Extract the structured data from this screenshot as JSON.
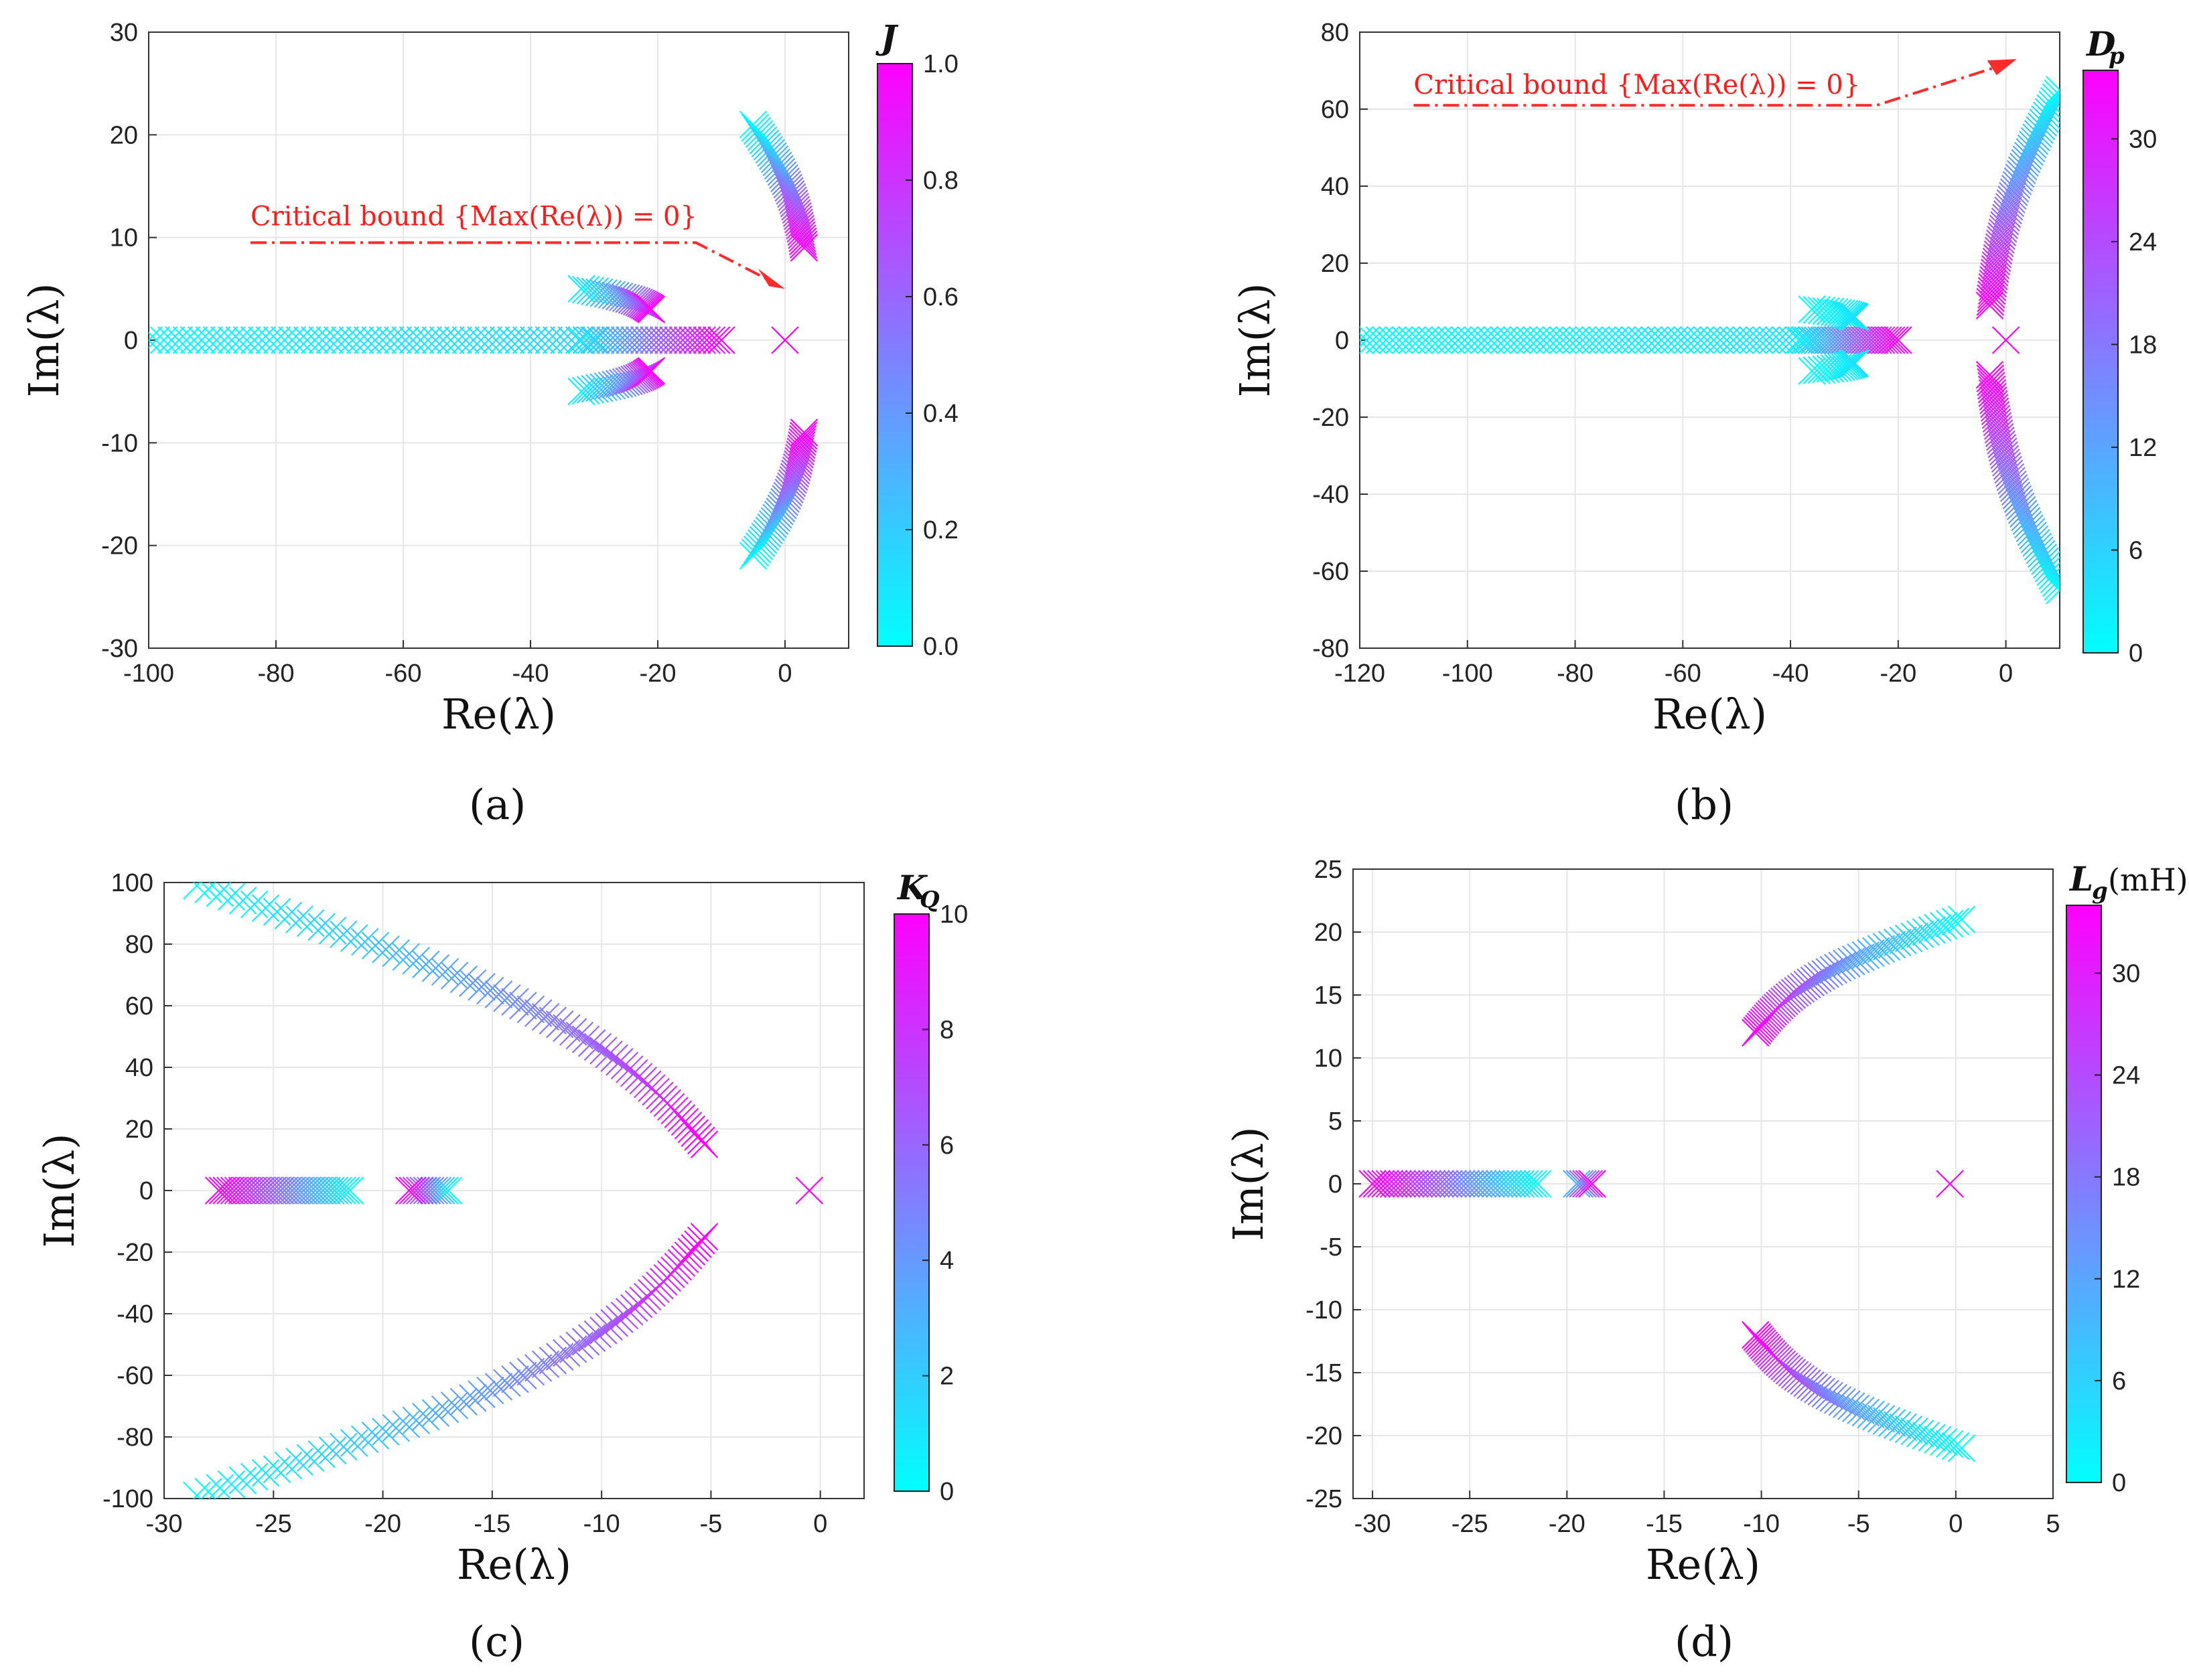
{
  "figure": {
    "subfigure_labels": [
      "(a)",
      "(b)",
      "(c)",
      "(d)"
    ]
  },
  "colors": {
    "cyan": "#00ffff",
    "magenta": "#ff00ff",
    "annotation": "#ff2a2a",
    "grid": "#e6e6e6",
    "axis": "#333333"
  },
  "chart_data": [
    {
      "type": "scatter",
      "id": "a",
      "xlabel": "Re(λ)",
      "ylabel": "Im(λ)",
      "xlim": [
        -100,
        10
      ],
      "ylim": [
        -30,
        30
      ],
      "xticks": [
        -100,
        -80,
        -60,
        -40,
        -20,
        0
      ],
      "yticks": [
        -30,
        -20,
        -10,
        0,
        10,
        20,
        30
      ],
      "colorbar": {
        "label": "J",
        "sub": "",
        "unit": "",
        "range": [
          0,
          1
        ],
        "ticks": [
          "0.0",
          "0.2",
          "0.4",
          "0.6",
          "0.8",
          "1.0"
        ]
      },
      "annotation": {
        "text": "Critical bound {Max(Re(λ)) = 0}"
      },
      "branches": [
        {
          "name": "real-axis high-frequency",
          "x_start": -100,
          "x_end": -30,
          "y_start": 0,
          "y_end": 0,
          "c_start": 0,
          "c_end": 0.15,
          "n": 60
        },
        {
          "name": "real-axis mid",
          "x_start": -32,
          "x_end": -10,
          "y_start": 0,
          "y_end": 0,
          "c_start": 0.1,
          "c_end": 1,
          "n": 30
        },
        {
          "name": "loop upper",
          "x_start": -32,
          "x_end": -21,
          "y_start": 5,
          "y_end": 3,
          "c_start": 0.05,
          "c_end": 1,
          "n": 25
        },
        {
          "name": "loop lower",
          "x_start": -32,
          "x_end": -21,
          "y_start": -5,
          "y_end": -3,
          "c_start": 0.05,
          "c_end": 1,
          "n": 25
        },
        {
          "name": "upper arc",
          "x_start": -5,
          "x_end": 3,
          "y_start": 21,
          "y_end": 9,
          "c_start": 0,
          "c_end": 1,
          "n": 40
        },
        {
          "name": "lower arc",
          "x_start": -5,
          "x_end": 3,
          "y_start": -21,
          "y_end": -9,
          "c_start": 0,
          "c_end": 1,
          "n": 40
        }
      ],
      "singles": [
        {
          "x": 0,
          "y": 0,
          "c": 1
        }
      ]
    },
    {
      "type": "scatter",
      "id": "b",
      "xlabel": "Re(λ)",
      "ylabel": "Im(λ)",
      "xlim": [
        -120,
        10
      ],
      "ylim": [
        -80,
        80
      ],
      "xticks": [
        -120,
        -100,
        -80,
        -60,
        -40,
        -20,
        0
      ],
      "yticks": [
        -80,
        -60,
        -40,
        -20,
        0,
        20,
        40,
        60,
        80
      ],
      "colorbar": {
        "label": "D",
        "sub": "p",
        "unit": "",
        "range": [
          0,
          34
        ],
        "ticks": [
          "0",
          "6",
          "12",
          "18",
          "24",
          "30"
        ]
      },
      "annotation": {
        "text": "Critical bound {Max(Re(λ)) = 0}"
      },
      "branches": [
        {
          "name": "real-axis",
          "x_start": -120,
          "x_end": -36,
          "y_start": 0,
          "y_end": 0,
          "c_start": 0,
          "c_end": 3,
          "n": 70
        },
        {
          "name": "real-axis mid",
          "x_start": -38,
          "x_end": -20,
          "y_start": 0,
          "y_end": 0,
          "c_start": 2,
          "c_end": 34,
          "n": 30
        },
        {
          "name": "upper small",
          "x_start": -36,
          "x_end": -28,
          "y_start": 8,
          "y_end": 6,
          "c_start": 0,
          "c_end": 4,
          "n": 15
        },
        {
          "name": "lower small",
          "x_start": -36,
          "x_end": -28,
          "y_start": -8,
          "y_end": -6,
          "c_start": 0,
          "c_end": 4,
          "n": 15
        },
        {
          "name": "upper S",
          "x_start": 10,
          "x_end": -3,
          "y_start": 65,
          "y_end": 9,
          "c_start": 0,
          "c_end": 34,
          "n": 60
        },
        {
          "name": "lower S",
          "x_start": 10,
          "x_end": -3,
          "y_start": -65,
          "y_end": -9,
          "c_start": 0,
          "c_end": 34,
          "n": 60
        }
      ],
      "singles": [
        {
          "x": 0,
          "y": 0,
          "c": 34
        }
      ]
    },
    {
      "type": "scatter",
      "id": "c",
      "xlabel": "Re(λ)",
      "ylabel": "Im(λ)",
      "xlim": [
        -30,
        2
      ],
      "ylim": [
        -100,
        100
      ],
      "xticks": [
        -30,
        -25,
        -20,
        -15,
        -10,
        -5,
        0
      ],
      "yticks": [
        -100,
        -80,
        -60,
        -40,
        -20,
        0,
        20,
        40,
        60,
        80,
        100
      ],
      "colorbar": {
        "label": "K",
        "sub": "Q",
        "unit": "",
        "range": [
          0,
          10
        ],
        "ticks": [
          "0",
          "2",
          "4",
          "6",
          "8",
          "10"
        ]
      },
      "branches": [
        {
          "name": "upper branch",
          "x_start": -28.5,
          "x_end": -5.3,
          "y_start": 99,
          "y_end": 15,
          "c_start": 0,
          "c_end": 10,
          "n": 70
        },
        {
          "name": "lower branch",
          "x_start": -28.5,
          "x_end": -5.3,
          "y_start": -99,
          "y_end": -15,
          "c_start": 0,
          "c_end": 10,
          "n": 70
        },
        {
          "name": "real segment 1",
          "x_start": -21.5,
          "x_end": -27.5,
          "y_start": 0,
          "y_end": 0,
          "c_start": 0,
          "c_end": 10,
          "n": 35
        },
        {
          "name": "real segment 2",
          "x_start": -17,
          "x_end": -18.8,
          "y_start": 0,
          "y_end": 0,
          "c_start": 0,
          "c_end": 10,
          "n": 12
        }
      ],
      "singles": [
        {
          "x": -0.5,
          "y": 0,
          "c": 10
        }
      ]
    },
    {
      "type": "scatter",
      "id": "d",
      "xlabel": "Re(λ)",
      "ylabel": "Im(λ)",
      "xlim": [
        -31,
        5
      ],
      "ylim": [
        -25,
        25
      ],
      "xticks": [
        -30,
        -25,
        -20,
        -15,
        -10,
        -5,
        0,
        5
      ],
      "yticks": [
        -25,
        -20,
        -15,
        -10,
        -5,
        0,
        5,
        10,
        15,
        20,
        25
      ],
      "colorbar": {
        "label": "L",
        "sub": "g",
        "unit": "(mH)",
        "range": [
          0,
          34
        ],
        "ticks": [
          "0",
          "6",
          "12",
          "18",
          "24",
          "30"
        ]
      },
      "branches": [
        {
          "name": "real segment",
          "x_start": -21.5,
          "x_end": -30,
          "y_start": 0,
          "y_end": 0,
          "c_start": 0,
          "c_end": 34,
          "n": 40
        },
        {
          "name": "real small",
          "x_start": -19.5,
          "x_end": -18.7,
          "y_start": 0,
          "y_end": 0,
          "c_start": 10,
          "c_end": 34,
          "n": 6
        },
        {
          "name": "upper arc",
          "x_start": 0.3,
          "x_end": -10.3,
          "y_start": 21,
          "y_end": 12,
          "c_start": 0,
          "c_end": 34,
          "n": 55
        },
        {
          "name": "lower arc",
          "x_start": 0.3,
          "x_end": -10.3,
          "y_start": -21,
          "y_end": -12,
          "c_start": 0,
          "c_end": 34,
          "n": 55
        }
      ],
      "singles": [
        {
          "x": -0.3,
          "y": 0,
          "c": 34
        }
      ]
    }
  ]
}
